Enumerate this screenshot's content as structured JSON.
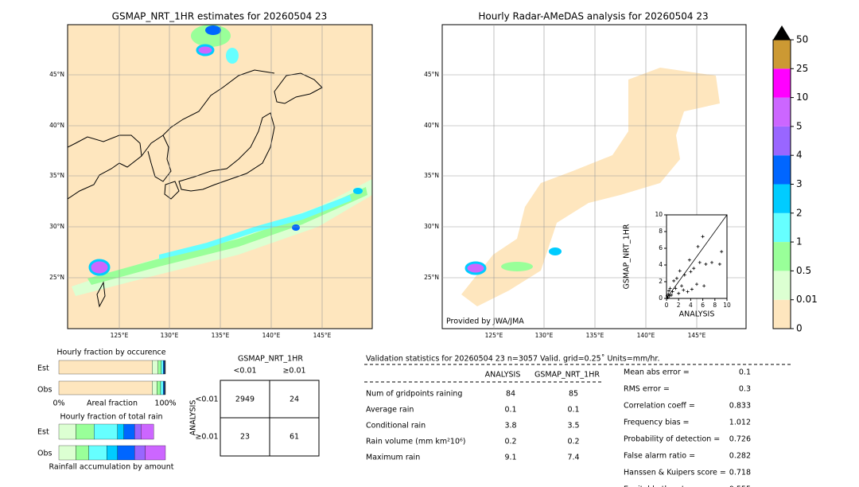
{
  "maps": {
    "left_title": "GSMAP_NRT_1HR estimates for 20260504 23",
    "right_title": "Hourly Radar-AMeDAS analysis for 20260504 23",
    "lat_labels": [
      "45°N",
      "40°N",
      "35°N",
      "30°N",
      "25°N"
    ],
    "lon_labels": [
      "125°E",
      "130°E",
      "135°E",
      "140°E",
      "145°E"
    ],
    "credit": "Provided by JWA/JMA"
  },
  "colorbar": {
    "levels": [
      0,
      0.01,
      0.5,
      1,
      2,
      3,
      4,
      5,
      10,
      25,
      50
    ],
    "colors": [
      "#fee6be",
      "#dcffd2",
      "#99ff99",
      "#66ffff",
      "#00ccff",
      "#0066ff",
      "#9966ff",
      "#cc66ff",
      "#ff00ff",
      "#cc9933"
    ],
    "extend_color": "#000000"
  },
  "chart_data": [
    {
      "type": "scatter",
      "x_label": "ANALYSIS",
      "y_label": "GSMAP_NRT_1HR",
      "xlim": [
        0,
        10
      ],
      "ylim": [
        0,
        10
      ],
      "xticks": [
        0,
        2,
        4,
        6,
        8,
        10
      ],
      "yticks": [
        0,
        2,
        4,
        6,
        8,
        10
      ],
      "x": [
        0.2,
        0.3,
        0.5,
        0.6,
        0.8,
        1,
        1.2,
        1.5,
        2,
        2.5,
        3,
        3.5,
        4,
        4.5,
        5,
        5.5,
        6,
        6.5,
        3.8,
        2.2,
        7.5,
        9.1,
        8.8,
        4.2,
        1.7,
        0.4,
        0.1,
        2.8,
        6.2,
        5.2
      ],
      "y": [
        0.1,
        0.5,
        0.3,
        1.2,
        0.4,
        0.8,
        2.1,
        1.2,
        0.6,
        1.5,
        2.8,
        0.8,
        3.2,
        3.6,
        1.7,
        4.3,
        7.4,
        4.1,
        4.6,
        3.3,
        4.3,
        5.6,
        4.1,
        1.1,
        2.4,
        0.9,
        0.3,
        1.0,
        1.5,
        6.2
      ],
      "color": "#000000"
    },
    {
      "type": "stacked_bar",
      "title": "Hourly fraction by occurence",
      "categories": [
        "Est",
        "Obs"
      ],
      "x_label": "Areal fraction",
      "xlim": [
        0,
        100
      ],
      "xticks": [
        {
          "value": 0,
          "label": "0%"
        },
        {
          "value": 100,
          "label": "100%"
        }
      ],
      "series": [
        {
          "color": "#fee6be",
          "values": [
            87.5,
            87.5
          ]
        },
        {
          "color": "#dcffd2",
          "values": [
            5.5,
            4.5
          ]
        },
        {
          "color": "#99ff99",
          "values": [
            3,
            3.5
          ]
        },
        {
          "color": "#66ffff",
          "values": [
            2,
            2.5
          ]
        },
        {
          "color": "#0066ff",
          "values": [
            1,
            1
          ]
        },
        {
          "color": "#333333",
          "values": [
            1,
            1
          ]
        }
      ]
    },
    {
      "type": "stacked_bar",
      "title": "Hourly fraction of total rain",
      "categories": [
        "Est",
        "Obs"
      ],
      "x_label": "Rainfall accumulation by amount",
      "xlim": [
        0,
        100
      ],
      "series": [
        {
          "color": "#dcffd2",
          "values": [
            16,
            16
          ]
        },
        {
          "color": "#99ff99",
          "values": [
            17,
            12
          ]
        },
        {
          "color": "#66ffff",
          "values": [
            22,
            17
          ]
        },
        {
          "color": "#00ccff",
          "values": [
            6,
            10
          ]
        },
        {
          "color": "#0066ff",
          "values": [
            10,
            16
          ]
        },
        {
          "color": "#9966ff",
          "values": [
            6,
            10
          ]
        },
        {
          "color": "#cc66ff",
          "values": [
            12,
            19
          ]
        }
      ]
    }
  ],
  "contingency": {
    "title": "GSMAP_NRT_1HR",
    "row_title": "ANALYSIS",
    "col_labels": [
      "<0.01",
      "≥0.01"
    ],
    "row_labels": [
      "<0.01",
      "≥0.01"
    ],
    "cells": [
      [
        2949,
        24
      ],
      [
        23,
        61
      ]
    ]
  },
  "validation": {
    "header": "Validation statistics for 20260504 23  n=3057 Valid. grid=0.25˚ Units=mm/hr.",
    "columns": [
      "ANALYSIS",
      "GSMAP_NRT_1HR"
    ],
    "rows": [
      {
        "label": "Num of gridpoints raining",
        "values": [
          84,
          85
        ]
      },
      {
        "label": "Average rain",
        "values": [
          0.1,
          0.1
        ]
      },
      {
        "label": "Conditional rain",
        "values": [
          3.8,
          3.5
        ]
      },
      {
        "label": "Rain volume (mm km²10⁶)",
        "values": [
          0.2,
          0.2
        ]
      },
      {
        "label": "Maximum rain",
        "values": [
          9.1,
          7.4
        ]
      }
    ],
    "scores": [
      {
        "label": "Mean abs error =",
        "value": 0.1
      },
      {
        "label": "RMS error =",
        "value": 0.3
      },
      {
        "label": "Correlation coeff =",
        "value": 0.833
      },
      {
        "label": "Frequency bias =",
        "value": 1.012
      },
      {
        "label": "Probability of detection =",
        "value": 0.726
      },
      {
        "label": "False alarm ratio =",
        "value": 0.282
      },
      {
        "label": "Hanssen & Kuipers score =",
        "value": 0.718
      },
      {
        "label": "Equitable threat score =",
        "value": 0.555
      }
    ]
  }
}
